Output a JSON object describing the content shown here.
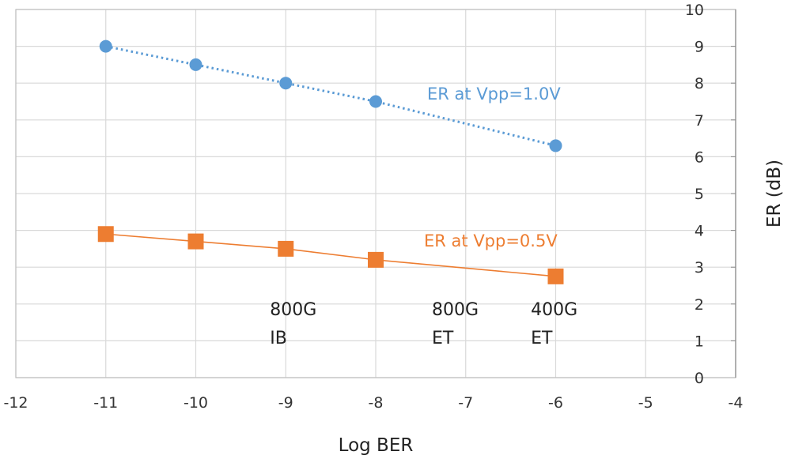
{
  "chart_data": {
    "type": "line",
    "xlabel": "Log BER",
    "ylabel": "ER (dB)",
    "xlim": [
      -12,
      -4
    ],
    "ylim": [
      0,
      10
    ],
    "x_ticks": [
      "-12",
      "-11",
      "-10",
      "-9",
      "-8",
      "-7",
      "-6",
      "-5",
      "-4"
    ],
    "y_ticks": [
      "0",
      "1",
      "2",
      "3",
      "4",
      "5",
      "6",
      "7",
      "8",
      "9",
      "10"
    ],
    "grid": true,
    "y_axis_side": "right",
    "series": [
      {
        "name": "ER at Vpp=1.0V",
        "color": "#5b9bd5",
        "marker": "circle",
        "line": "dotted",
        "x": [
          -11,
          -10,
          -9,
          -8,
          -6
        ],
        "y": [
          9.0,
          8.5,
          8.0,
          7.5,
          6.3
        ]
      },
      {
        "name": "ER at Vpp=0.5V",
        "color": "#ed7d31",
        "marker": "square",
        "line": "solid",
        "x": [
          -11,
          -10,
          -9,
          -8,
          -6
        ],
        "y": [
          3.9,
          3.7,
          3.5,
          3.2,
          2.75
        ]
      }
    ],
    "annotations": [
      {
        "lines": [
          "800G",
          "IB"
        ],
        "x": -9,
        "y": 1.7
      },
      {
        "lines": [
          "800G",
          "ET"
        ],
        "x": -7.2,
        "y": 1.7
      },
      {
        "lines": [
          "400G",
          "ET"
        ],
        "x": -6.1,
        "y": 1.7
      }
    ]
  }
}
